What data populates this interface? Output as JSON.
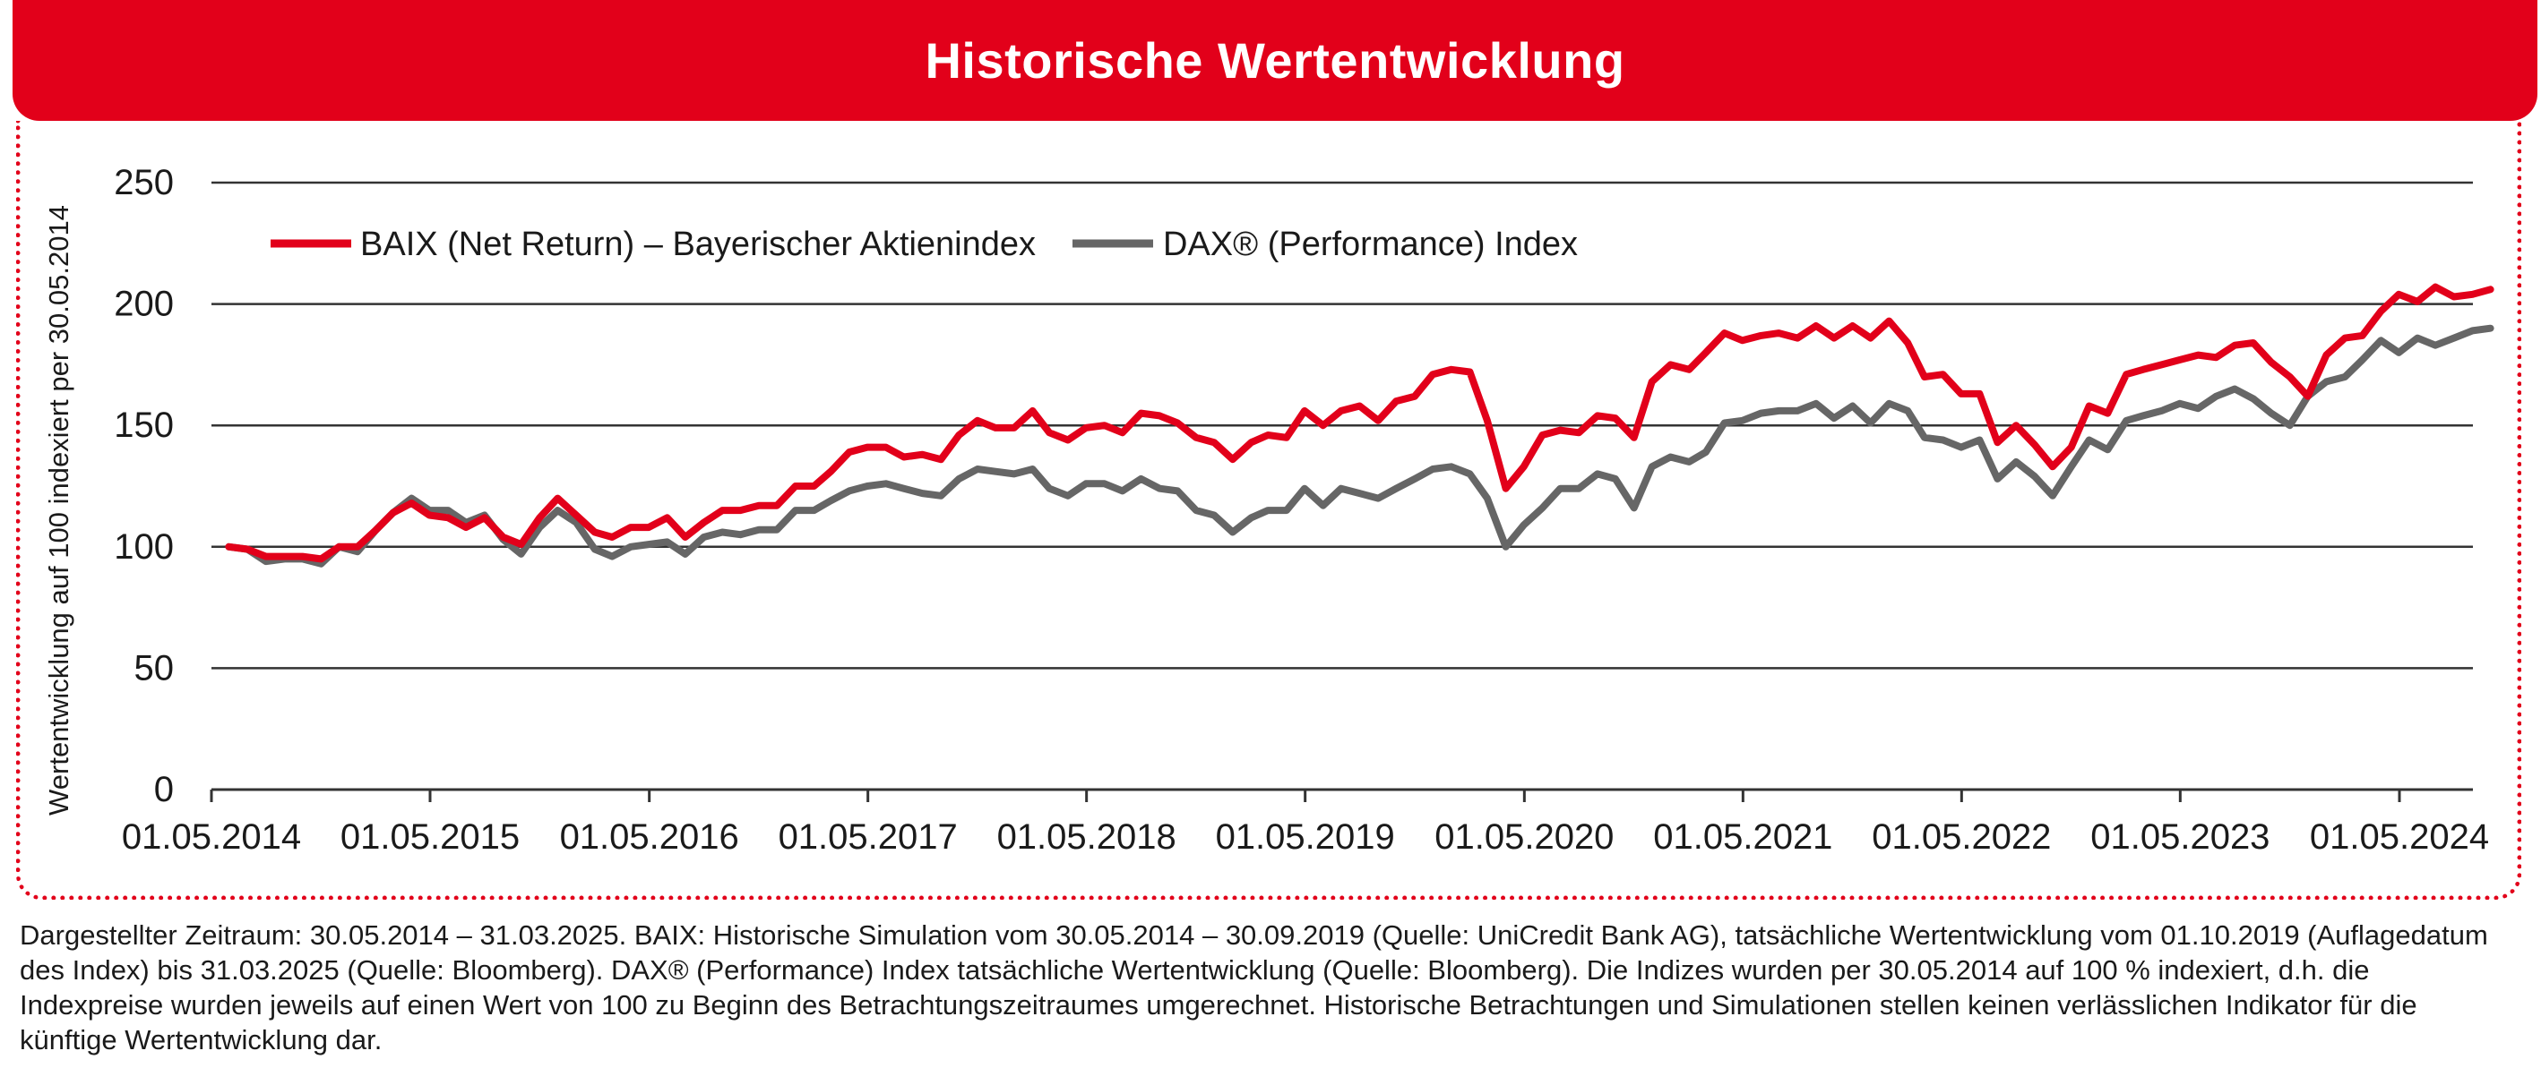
{
  "title": "Historische Wertentwicklung",
  "colors": {
    "brand_red": "#e2001a",
    "dax_gray": "#666666",
    "grid": "#333333"
  },
  "chart_data": {
    "type": "line",
    "title": "Historische Wertentwicklung",
    "ylabel": "Wertentwicklung auf 100 indexiert per 30.05.2014",
    "xlabel": "",
    "ylim": [
      0,
      250
    ],
    "yticks": [
      0,
      50,
      100,
      150,
      200,
      250
    ],
    "xlim": [
      "2014-05-01",
      "2025-03-31"
    ],
    "xticks": [
      "01.05.2014",
      "01.05.2015",
      "01.05.2016",
      "01.05.2017",
      "01.05.2018",
      "01.05.2019",
      "01.05.2020",
      "01.05.2021",
      "01.05.2022",
      "01.05.2023",
      "01.05.2024"
    ],
    "grid": "horizontal",
    "legend_position": "top-left",
    "series": [
      {
        "name": "BAIX (Net Return) – Bayerischer Aktienindex",
        "color": "#e2001a",
        "points": [
          [
            "2014-05-30",
            100
          ],
          [
            "2014-06-30",
            99
          ],
          [
            "2014-07-31",
            96
          ],
          [
            "2014-08-31",
            96
          ],
          [
            "2014-09-30",
            96
          ],
          [
            "2014-10-31",
            95
          ],
          [
            "2014-11-30",
            100
          ],
          [
            "2014-12-31",
            100
          ],
          [
            "2015-01-31",
            107
          ],
          [
            "2015-02-28",
            114
          ],
          [
            "2015-03-31",
            118
          ],
          [
            "2015-04-30",
            113
          ],
          [
            "2015-05-31",
            112
          ],
          [
            "2015-06-30",
            108
          ],
          [
            "2015-07-31",
            112
          ],
          [
            "2015-08-31",
            104
          ],
          [
            "2015-09-30",
            101
          ],
          [
            "2015-10-31",
            112
          ],
          [
            "2015-11-30",
            120
          ],
          [
            "2015-12-31",
            113
          ],
          [
            "2016-01-31",
            106
          ],
          [
            "2016-02-29",
            104
          ],
          [
            "2016-03-31",
            108
          ],
          [
            "2016-04-30",
            108
          ],
          [
            "2016-05-31",
            112
          ],
          [
            "2016-06-30",
            104
          ],
          [
            "2016-07-31",
            110
          ],
          [
            "2016-08-31",
            115
          ],
          [
            "2016-09-30",
            115
          ],
          [
            "2016-10-31",
            117
          ],
          [
            "2016-11-30",
            117
          ],
          [
            "2016-12-31",
            125
          ],
          [
            "2017-01-31",
            125
          ],
          [
            "2017-02-28",
            131
          ],
          [
            "2017-03-31",
            139
          ],
          [
            "2017-04-30",
            141
          ],
          [
            "2017-05-31",
            141
          ],
          [
            "2017-06-30",
            137
          ],
          [
            "2017-07-31",
            138
          ],
          [
            "2017-08-31",
            136
          ],
          [
            "2017-09-30",
            146
          ],
          [
            "2017-10-31",
            152
          ],
          [
            "2017-11-30",
            149
          ],
          [
            "2017-12-31",
            149
          ],
          [
            "2018-01-31",
            156
          ],
          [
            "2018-02-28",
            147
          ],
          [
            "2018-03-31",
            144
          ],
          [
            "2018-04-30",
            149
          ],
          [
            "2018-05-31",
            150
          ],
          [
            "2018-06-30",
            147
          ],
          [
            "2018-07-31",
            155
          ],
          [
            "2018-08-31",
            154
          ],
          [
            "2018-09-30",
            151
          ],
          [
            "2018-10-31",
            145
          ],
          [
            "2018-11-30",
            143
          ],
          [
            "2018-12-31",
            136
          ],
          [
            "2019-01-31",
            143
          ],
          [
            "2019-02-28",
            146
          ],
          [
            "2019-03-31",
            145
          ],
          [
            "2019-04-30",
            156
          ],
          [
            "2019-05-31",
            150
          ],
          [
            "2019-06-30",
            156
          ],
          [
            "2019-07-31",
            158
          ],
          [
            "2019-08-31",
            152
          ],
          [
            "2019-09-30",
            160
          ],
          [
            "2019-10-31",
            162
          ],
          [
            "2019-11-30",
            171
          ],
          [
            "2019-12-31",
            173
          ],
          [
            "2020-01-31",
            172
          ],
          [
            "2020-02-29",
            152
          ],
          [
            "2020-03-31",
            124
          ],
          [
            "2020-04-30",
            133
          ],
          [
            "2020-05-31",
            146
          ],
          [
            "2020-06-30",
            148
          ],
          [
            "2020-07-31",
            147
          ],
          [
            "2020-08-31",
            154
          ],
          [
            "2020-09-30",
            153
          ],
          [
            "2020-10-31",
            145
          ],
          [
            "2020-11-30",
            168
          ],
          [
            "2020-12-31",
            175
          ],
          [
            "2021-01-31",
            173
          ],
          [
            "2021-02-28",
            180
          ],
          [
            "2021-03-31",
            188
          ],
          [
            "2021-04-30",
            185
          ],
          [
            "2021-05-31",
            187
          ],
          [
            "2021-06-30",
            188
          ],
          [
            "2021-07-31",
            186
          ],
          [
            "2021-08-31",
            191
          ],
          [
            "2021-09-30",
            186
          ],
          [
            "2021-10-31",
            191
          ],
          [
            "2021-11-30",
            186
          ],
          [
            "2021-12-31",
            193
          ],
          [
            "2022-01-31",
            184
          ],
          [
            "2022-02-28",
            170
          ],
          [
            "2022-03-31",
            171
          ],
          [
            "2022-04-30",
            163
          ],
          [
            "2022-05-31",
            163
          ],
          [
            "2022-06-30",
            143
          ],
          [
            "2022-07-31",
            150
          ],
          [
            "2022-08-31",
            142
          ],
          [
            "2022-09-30",
            133
          ],
          [
            "2022-10-31",
            141
          ],
          [
            "2022-11-30",
            158
          ],
          [
            "2022-12-31",
            155
          ],
          [
            "2023-01-31",
            171
          ],
          [
            "2023-02-28",
            173
          ],
          [
            "2023-03-31",
            175
          ],
          [
            "2023-04-30",
            177
          ],
          [
            "2023-05-31",
            179
          ],
          [
            "2023-06-30",
            178
          ],
          [
            "2023-07-31",
            183
          ],
          [
            "2023-08-31",
            184
          ],
          [
            "2023-09-30",
            176
          ],
          [
            "2023-10-31",
            170
          ],
          [
            "2023-11-30",
            162
          ],
          [
            "2023-12-31",
            179
          ],
          [
            "2024-01-31",
            186
          ],
          [
            "2024-02-29",
            187
          ],
          [
            "2024-03-31",
            197
          ],
          [
            "2024-04-30",
            204
          ],
          [
            "2024-05-31",
            201
          ],
          [
            "2024-06-30",
            207
          ],
          [
            "2024-07-31",
            203
          ],
          [
            "2024-08-31",
            204
          ],
          [
            "2024-09-30",
            206
          ]
        ]
      },
      {
        "name": "DAX® (Performance) Index",
        "color": "#666666",
        "points": [
          [
            "2014-05-30",
            100
          ],
          [
            "2014-06-30",
            99
          ],
          [
            "2014-07-31",
            94
          ],
          [
            "2014-08-31",
            95
          ],
          [
            "2014-09-30",
            95
          ],
          [
            "2014-10-31",
            93
          ],
          [
            "2014-11-30",
            100
          ],
          [
            "2014-12-31",
            98
          ],
          [
            "2015-01-31",
            107
          ],
          [
            "2015-02-28",
            114
          ],
          [
            "2015-03-31",
            120
          ],
          [
            "2015-04-30",
            115
          ],
          [
            "2015-05-31",
            115
          ],
          [
            "2015-06-30",
            110
          ],
          [
            "2015-07-31",
            113
          ],
          [
            "2015-08-31",
            103
          ],
          [
            "2015-09-30",
            97
          ],
          [
            "2015-10-31",
            108
          ],
          [
            "2015-11-30",
            115
          ],
          [
            "2015-12-31",
            110
          ],
          [
            "2016-01-31",
            99
          ],
          [
            "2016-02-29",
            96
          ],
          [
            "2016-03-31",
            100
          ],
          [
            "2016-04-30",
            101
          ],
          [
            "2016-05-31",
            102
          ],
          [
            "2016-06-30",
            97
          ],
          [
            "2016-07-31",
            104
          ],
          [
            "2016-08-31",
            106
          ],
          [
            "2016-09-30",
            105
          ],
          [
            "2016-10-31",
            107
          ],
          [
            "2016-11-30",
            107
          ],
          [
            "2016-12-31",
            115
          ],
          [
            "2017-01-31",
            115
          ],
          [
            "2017-02-28",
            119
          ],
          [
            "2017-03-31",
            123
          ],
          [
            "2017-04-30",
            125
          ],
          [
            "2017-05-31",
            126
          ],
          [
            "2017-06-30",
            124
          ],
          [
            "2017-07-31",
            122
          ],
          [
            "2017-08-31",
            121
          ],
          [
            "2017-09-30",
            128
          ],
          [
            "2017-10-31",
            132
          ],
          [
            "2017-11-30",
            131
          ],
          [
            "2017-12-31",
            130
          ],
          [
            "2018-01-31",
            132
          ],
          [
            "2018-02-28",
            124
          ],
          [
            "2018-03-31",
            121
          ],
          [
            "2018-04-30",
            126
          ],
          [
            "2018-05-31",
            126
          ],
          [
            "2018-06-30",
            123
          ],
          [
            "2018-07-31",
            128
          ],
          [
            "2018-08-31",
            124
          ],
          [
            "2018-09-30",
            123
          ],
          [
            "2018-10-31",
            115
          ],
          [
            "2018-11-30",
            113
          ],
          [
            "2018-12-31",
            106
          ],
          [
            "2019-01-31",
            112
          ],
          [
            "2019-02-28",
            115
          ],
          [
            "2019-03-31",
            115
          ],
          [
            "2019-04-30",
            124
          ],
          [
            "2019-05-31",
            117
          ],
          [
            "2019-06-30",
            124
          ],
          [
            "2019-07-31",
            122
          ],
          [
            "2019-08-31",
            120
          ],
          [
            "2019-09-30",
            124
          ],
          [
            "2019-10-31",
            128
          ],
          [
            "2019-11-30",
            132
          ],
          [
            "2019-12-31",
            133
          ],
          [
            "2020-01-31",
            130
          ],
          [
            "2020-02-29",
            120
          ],
          [
            "2020-03-31",
            100
          ],
          [
            "2020-04-30",
            109
          ],
          [
            "2020-05-31",
            116
          ],
          [
            "2020-06-30",
            124
          ],
          [
            "2020-07-31",
            124
          ],
          [
            "2020-08-31",
            130
          ],
          [
            "2020-09-30",
            128
          ],
          [
            "2020-10-31",
            116
          ],
          [
            "2020-11-30",
            133
          ],
          [
            "2020-12-31",
            137
          ],
          [
            "2021-01-31",
            135
          ],
          [
            "2021-02-28",
            139
          ],
          [
            "2021-03-31",
            151
          ],
          [
            "2021-04-30",
            152
          ],
          [
            "2021-05-31",
            155
          ],
          [
            "2021-06-30",
            156
          ],
          [
            "2021-07-31",
            156
          ],
          [
            "2021-08-31",
            159
          ],
          [
            "2021-09-30",
            153
          ],
          [
            "2021-10-31",
            158
          ],
          [
            "2021-11-30",
            151
          ],
          [
            "2021-12-31",
            159
          ],
          [
            "2022-01-31",
            156
          ],
          [
            "2022-02-28",
            145
          ],
          [
            "2022-03-31",
            144
          ],
          [
            "2022-04-30",
            141
          ],
          [
            "2022-05-31",
            144
          ],
          [
            "2022-06-30",
            128
          ],
          [
            "2022-07-31",
            135
          ],
          [
            "2022-08-31",
            129
          ],
          [
            "2022-09-30",
            121
          ],
          [
            "2022-10-31",
            133
          ],
          [
            "2022-11-30",
            144
          ],
          [
            "2022-12-31",
            140
          ],
          [
            "2023-01-31",
            152
          ],
          [
            "2023-02-28",
            154
          ],
          [
            "2023-03-31",
            156
          ],
          [
            "2023-04-30",
            159
          ],
          [
            "2023-05-31",
            157
          ],
          [
            "2023-06-30",
            162
          ],
          [
            "2023-07-31",
            165
          ],
          [
            "2023-08-31",
            161
          ],
          [
            "2023-09-30",
            155
          ],
          [
            "2023-10-31",
            150
          ],
          [
            "2023-11-30",
            162
          ],
          [
            "2023-12-31",
            168
          ],
          [
            "2024-01-31",
            170
          ],
          [
            "2024-02-29",
            177
          ],
          [
            "2024-03-31",
            185
          ],
          [
            "2024-04-30",
            180
          ],
          [
            "2024-05-31",
            186
          ],
          [
            "2024-06-30",
            183
          ],
          [
            "2024-07-31",
            186
          ],
          [
            "2024-08-31",
            189
          ],
          [
            "2024-09-30",
            190
          ]
        ]
      }
    ]
  },
  "footnote": "Dargestellter Zeitraum: 30.05.2014 – 31.03.2025. BAIX: Historische Simulation vom 30.05.2014 – 30.09.2019 (Quelle: UniCredit Bank AG), tatsächliche Wertentwicklung vom 01.10.2019 (Auflagedatum des Index) bis 31.03.2025 (Quelle: Bloomberg). DAX® (Performance) Index tatsächliche Wertentwicklung (Quelle: Bloomberg). Die Indizes wurden per 30.05.2014 auf 100 % indexiert, d.h. die Indexpreise wurden jeweils auf einen Wert von 100 zu Beginn des Betrachtungszeitraumes umgerechnet. Historische Betrachtungen und Simulationen stellen keinen verlässlichen Indikator für die künftige Wertentwicklung dar."
}
